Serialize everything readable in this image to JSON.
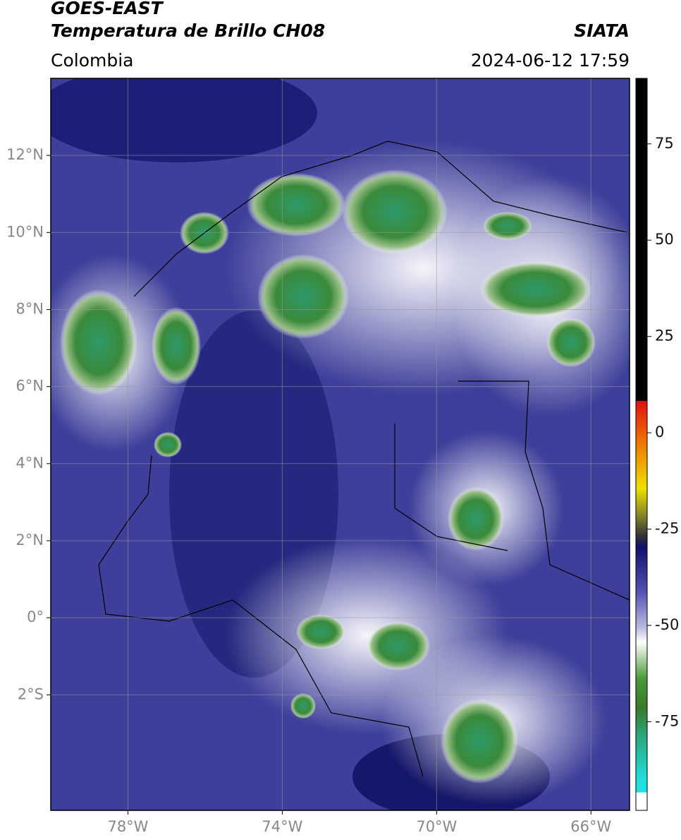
{
  "chart_data": {
    "type": "map",
    "title": "GOES-EAST",
    "subtitle": "Temperatura de Brillo CH08",
    "source": "SIATA",
    "region": "Colombia",
    "datetime": "2024-06-12 17:59",
    "xlim": [
      -80,
      -65
    ],
    "ylim": [
      -5,
      14
    ],
    "xticks": [
      {
        "value": -78,
        "label": "78°W"
      },
      {
        "value": -74,
        "label": "74°W"
      },
      {
        "value": -70,
        "label": "70°W"
      },
      {
        "value": -66,
        "label": "66°W"
      }
    ],
    "yticks": [
      {
        "value": 12,
        "label": "12°N"
      },
      {
        "value": 10,
        "label": "10°N"
      },
      {
        "value": 8,
        "label": "8°N"
      },
      {
        "value": 6,
        "label": "6°N"
      },
      {
        "value": 4,
        "label": "4°N"
      },
      {
        "value": 2,
        "label": "2°N"
      },
      {
        "value": 0,
        "label": "0°"
      },
      {
        "value": -2,
        "label": "2°S"
      }
    ],
    "grid": true,
    "colorbar": {
      "lim": [
        -98,
        92
      ],
      "ticks": [
        75,
        50,
        25,
        0,
        -25,
        -50,
        -75
      ]
    }
  }
}
